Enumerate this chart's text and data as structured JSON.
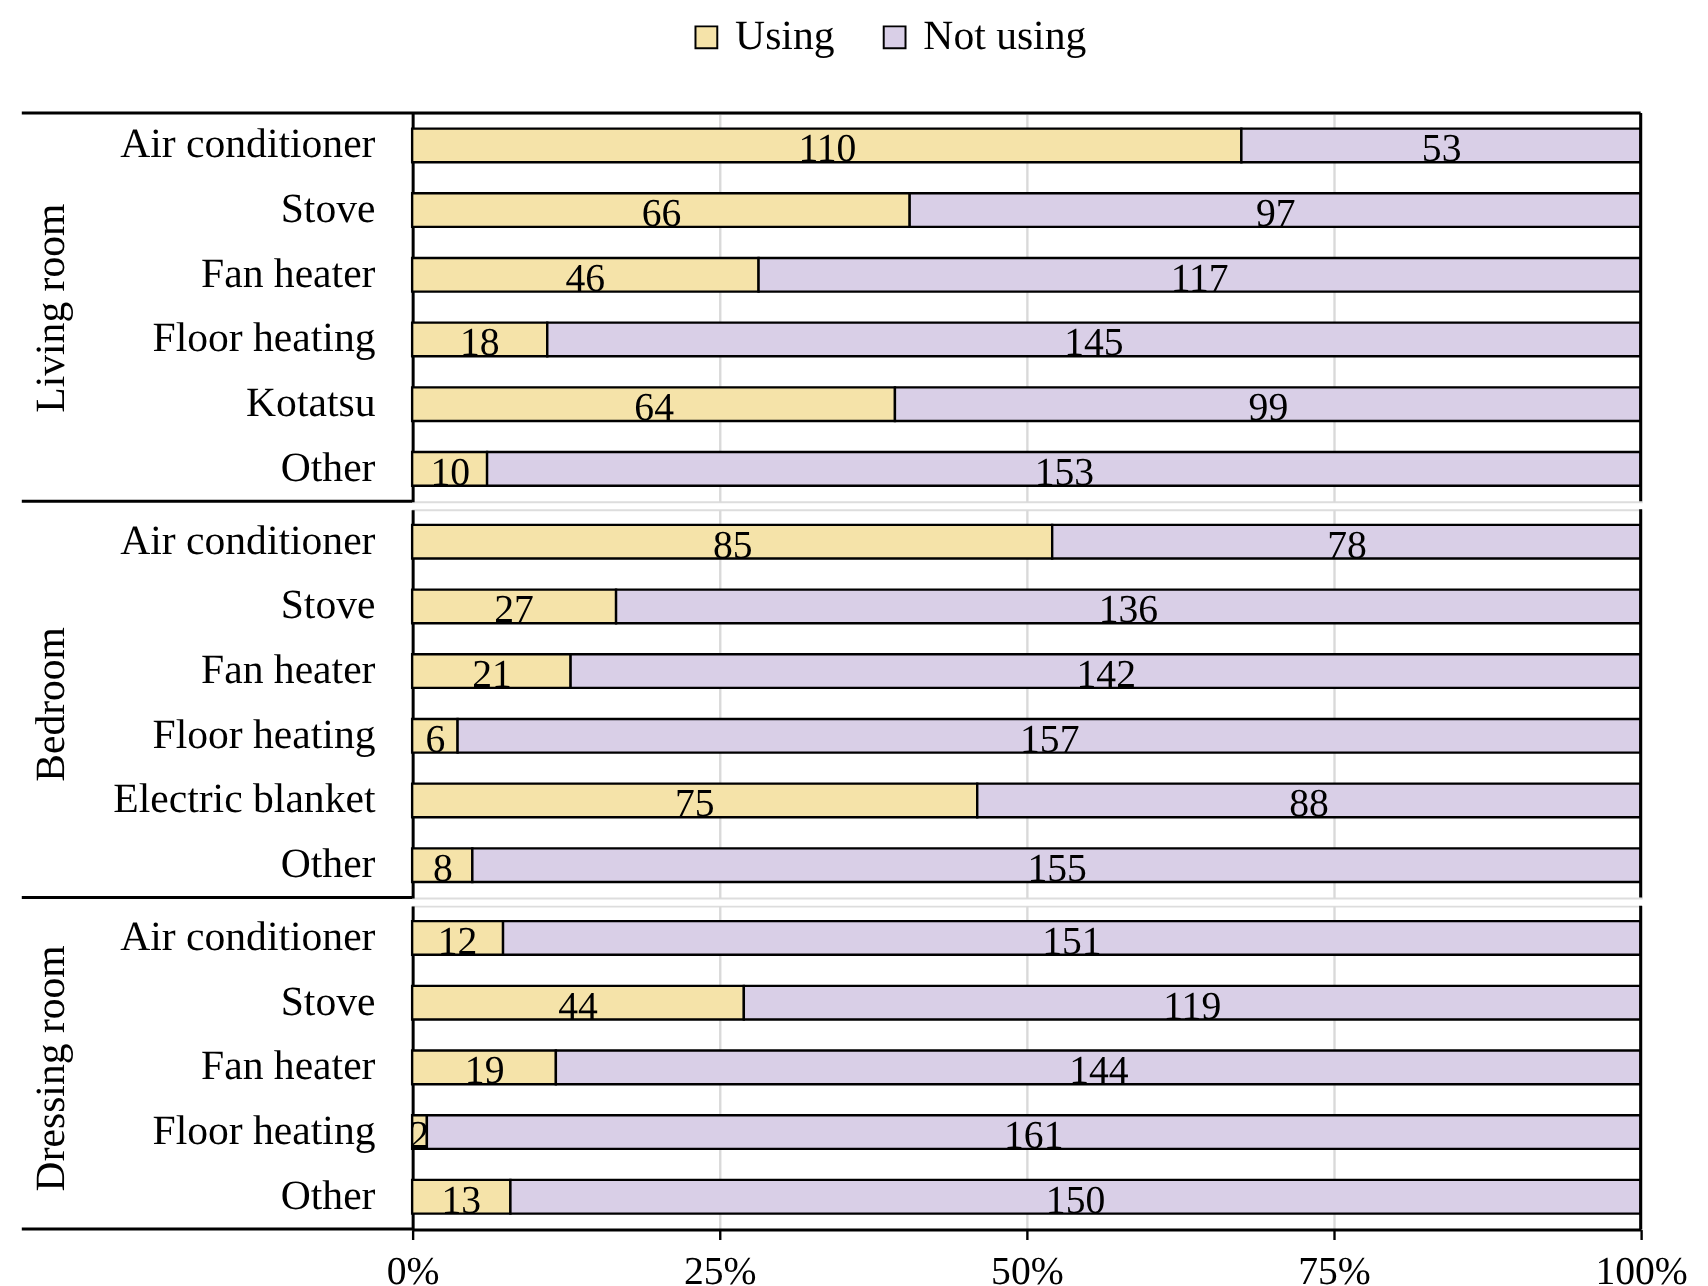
{
  "chart_data": [
    {
      "type": "bar",
      "orientation": "horizontal",
      "stacked": true,
      "ylabel": "Living room",
      "categories": [
        "Air conditioner",
        "Stove",
        "Fan heater",
        "Floor heating",
        "Kotatsu",
        "Other"
      ],
      "series": [
        {
          "name": "Using",
          "color": "#f5e3a9",
          "values": [
            67.5,
            40.5,
            28.2,
            11.0,
            39.3,
            6.1
          ]
        },
        {
          "name": "Not using",
          "color": "#d9cfe7",
          "values": [
            32.5,
            59.5,
            71.8,
            89.0,
            60.7,
            93.9
          ]
        }
      ],
      "xlim": [
        0,
        100
      ],
      "xticks": [
        0,
        25,
        50,
        75,
        100
      ],
      "grid": "x",
      "legend": "top",
      "tick_labels": "y",
      "annotations": [
        {
          "text": "110",
          "x": 33.8,
          "y": "Air conditioner"
        },
        {
          "text": "53",
          "x": 83.8,
          "y": "Air conditioner"
        },
        {
          "text": "66",
          "x": 20.3,
          "y": "Stove"
        },
        {
          "text": "97",
          "x": 70.3,
          "y": "Stove"
        },
        {
          "text": "46",
          "x": 14.1,
          "y": "Fan heater"
        },
        {
          "text": "117",
          "x": 64.1,
          "y": "Fan heater"
        },
        {
          "text": "18",
          "x": 5.5,
          "y": "Floor heating"
        },
        {
          "text": "145",
          "x": 55.5,
          "y": "Floor heating"
        },
        {
          "text": "64",
          "x": 19.7,
          "y": "Kotatsu"
        },
        {
          "text": "99",
          "x": 69.7,
          "y": "Kotatsu"
        },
        {
          "text": "10",
          "x": 3.1,
          "y": "Other"
        },
        {
          "text": "153",
          "x": 53.1,
          "y": "Other"
        }
      ]
    },
    {
      "type": "bar",
      "orientation": "horizontal",
      "stacked": true,
      "ylabel": "Bedroom",
      "categories": [
        "Air conditioner",
        "Stove",
        "Fan heater",
        "Floor heating",
        "Electric blanket",
        "Other"
      ],
      "series": [
        {
          "color": "#f5e3a9",
          "values": [
            52.1,
            16.6,
            12.9,
            3.7,
            46.0,
            4.9
          ]
        },
        {
          "color": "#d9cfe7",
          "values": [
            47.9,
            83.4,
            87.1,
            96.3,
            54.0,
            95.1
          ]
        }
      ],
      "xlim": [
        0,
        100
      ],
      "xticks": [
        0,
        25,
        50,
        75,
        100
      ],
      "grid": "x",
      "tick_labels": "y",
      "annotations": [
        {
          "text": "85",
          "x": 26.1,
          "y": "Air conditioner"
        },
        {
          "text": "78",
          "x": 76.1,
          "y": "Air conditioner"
        },
        {
          "text": "27",
          "x": 8.3,
          "y": "Stove"
        },
        {
          "text": "136",
          "x": 58.3,
          "y": "Stove"
        },
        {
          "text": "21",
          "x": 6.5,
          "y": "Fan heater"
        },
        {
          "text": "142",
          "x": 56.5,
          "y": "Fan heater"
        },
        {
          "text": "6",
          "x": 1.9,
          "y": "Floor heating"
        },
        {
          "text": "157",
          "x": 51.9,
          "y": "Floor heating"
        },
        {
          "text": "75",
          "x": 23.0,
          "y": "Electric blanket"
        },
        {
          "text": "88",
          "x": 73.0,
          "y": "Electric blanket"
        },
        {
          "text": "8",
          "x": 2.5,
          "y": "Other"
        },
        {
          "text": "155",
          "x": 52.5,
          "y": "Other"
        }
      ]
    },
    {
      "type": "bar",
      "orientation": "horizontal",
      "stacked": true,
      "ylabel": "Dressing room",
      "categories": [
        "Air conditioner",
        "Stove",
        "Fan heater",
        "Floor heating",
        "Other"
      ],
      "series": [
        {
          "color": "#f5e3a9",
          "values": [
            7.4,
            27.0,
            11.7,
            1.2,
            8.0
          ]
        },
        {
          "color": "#d9cfe7",
          "values": [
            92.6,
            73.0,
            88.3,
            98.8,
            92.0
          ]
        }
      ],
      "xlim": [
        0,
        100
      ],
      "xticks": [
        {
          "value": 0,
          "label": "0%"
        },
        {
          "value": 25,
          "label": "25%"
        },
        {
          "value": 50,
          "label": "50%"
        },
        {
          "value": 75,
          "label": "75%"
        },
        {
          "value": 100,
          "label": "100%"
        }
      ],
      "grid": "x",
      "annotations": [
        {
          "text": "12",
          "x": 3.7,
          "y": "Air conditioner"
        },
        {
          "text": "151",
          "x": 53.7,
          "y": "Air conditioner"
        },
        {
          "text": "44",
          "x": 13.5,
          "y": "Stove"
        },
        {
          "text": "119",
          "x": 63.5,
          "y": "Stove"
        },
        {
          "text": "19",
          "x": 5.9,
          "y": "Fan heater"
        },
        {
          "text": "144",
          "x": 55.9,
          "y": "Fan heater"
        },
        {
          "text": "2",
          "x": 0.6,
          "y": "Floor heating"
        },
        {
          "text": "161",
          "x": 50.6,
          "y": "Floor heating"
        },
        {
          "text": "13",
          "x": 4.0,
          "y": "Other"
        },
        {
          "text": "150",
          "x": 54.0,
          "y": "Other"
        }
      ]
    }
  ]
}
